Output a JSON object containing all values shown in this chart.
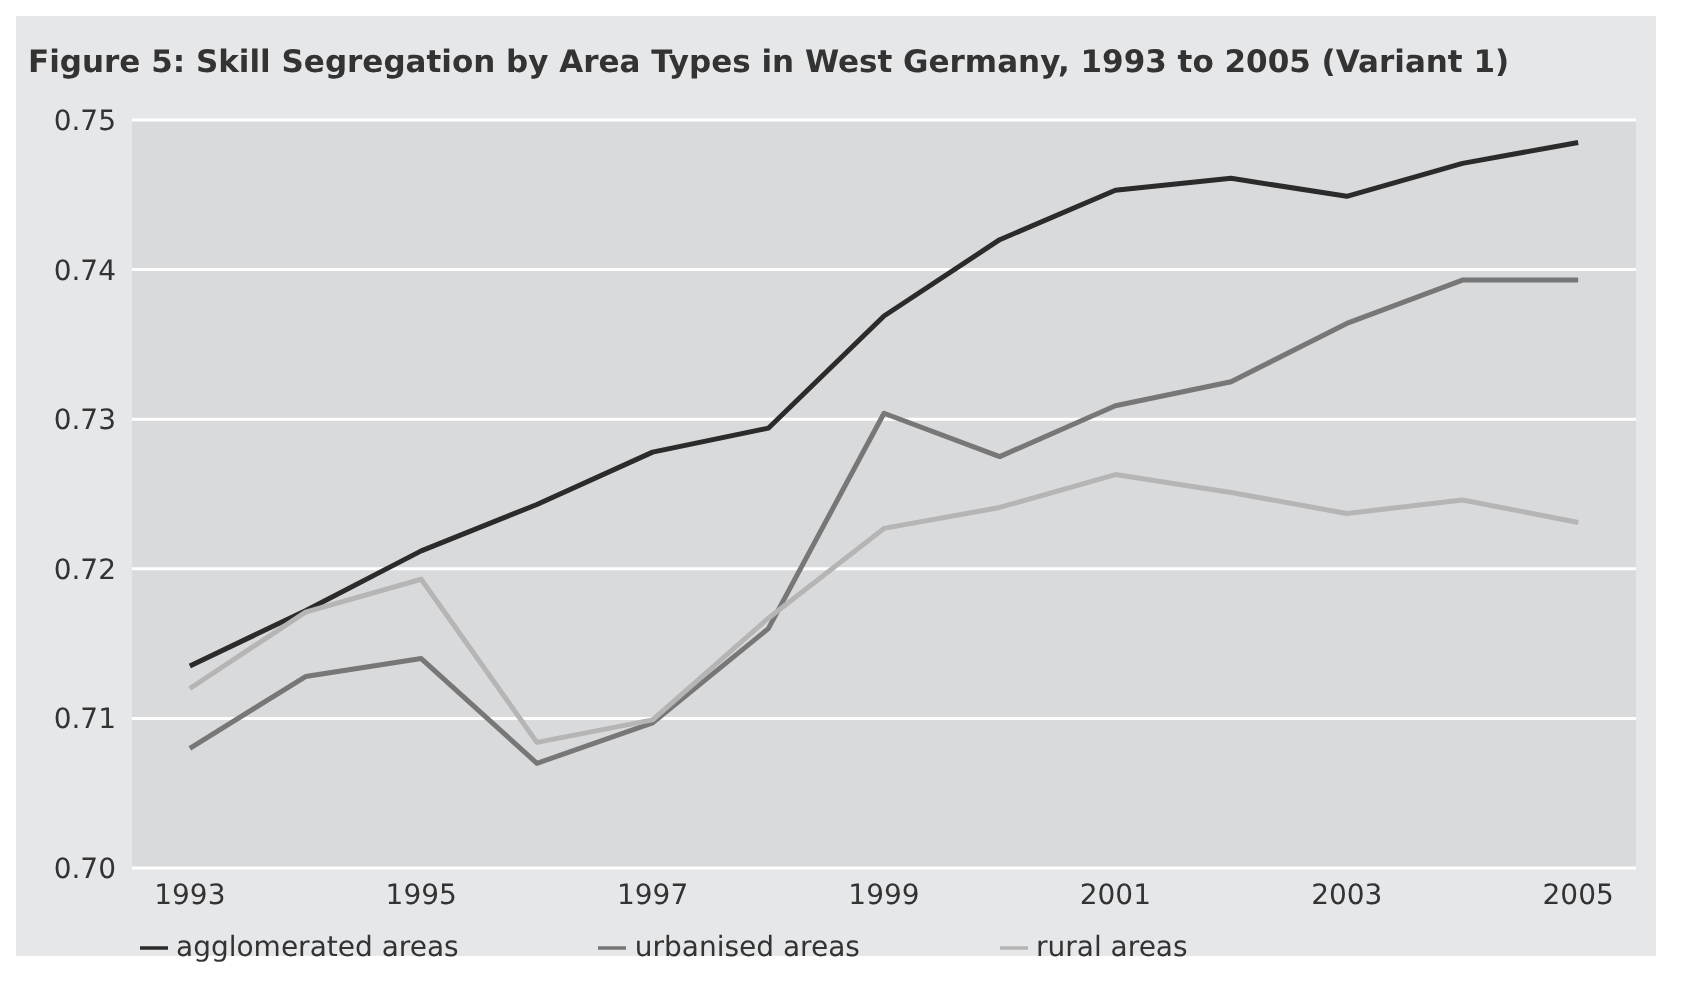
{
  "chart_data": {
    "type": "line",
    "title": "Figure 5: Skill Segregation by Area Types in West Germany, 1993 to 2005 (Variant 1)",
    "x": [
      1993,
      1994,
      1995,
      1996,
      1997,
      1998,
      1999,
      2000,
      2001,
      2002,
      2003,
      2004,
      2005
    ],
    "series": [
      {
        "name": "agglomerated areas",
        "color": "#2b2b2b",
        "values": [
          0.7135,
          0.7172,
          0.7212,
          0.7243,
          0.7278,
          0.7294,
          0.7369,
          0.742,
          0.7453,
          0.7461,
          0.7449,
          0.7471,
          0.7485
        ]
      },
      {
        "name": "urbanised areas",
        "color": "#777777",
        "values": [
          0.708,
          0.7128,
          0.714,
          0.707,
          0.7097,
          0.716,
          0.7304,
          0.7275,
          0.7309,
          0.7325,
          0.7364,
          0.7393,
          0.7393
        ]
      },
      {
        "name": "rural areas",
        "color": "#b5b5b5",
        "values": [
          0.712,
          0.7171,
          0.7193,
          0.7084,
          0.7099,
          0.7167,
          0.7227,
          0.7241,
          0.7263,
          0.7251,
          0.7237,
          0.7246,
          0.7231
        ]
      }
    ],
    "xlim": [
      1992.5,
      2005.5
    ],
    "xticks": [
      1993,
      1995,
      1997,
      1999,
      2001,
      2003,
      2005
    ],
    "ylim": [
      0.7,
      0.75
    ],
    "yticks": [
      {
        "value": 0.7,
        "label": "0.70"
      },
      0.71,
      0.72,
      0.73,
      0.74,
      0.75
    ],
    "grid": "y",
    "legend": "bottom",
    "marker": "none",
    "line_style": "solid"
  }
}
